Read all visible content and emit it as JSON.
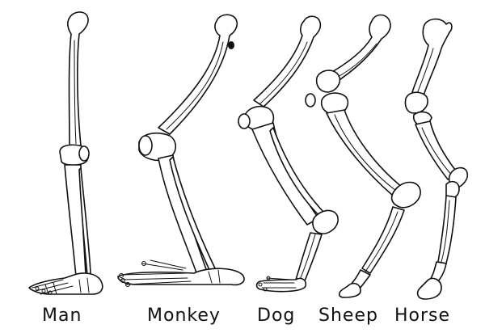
{
  "figure": {
    "subject": "leg skeleton comparison",
    "labels": {
      "man": "Man",
      "monkey": "Monkey",
      "dog": "Dog",
      "sheep": "Sheep",
      "horse": "Horse"
    },
    "colors": {
      "ink": "#111111",
      "paper": "#ffffff"
    }
  }
}
